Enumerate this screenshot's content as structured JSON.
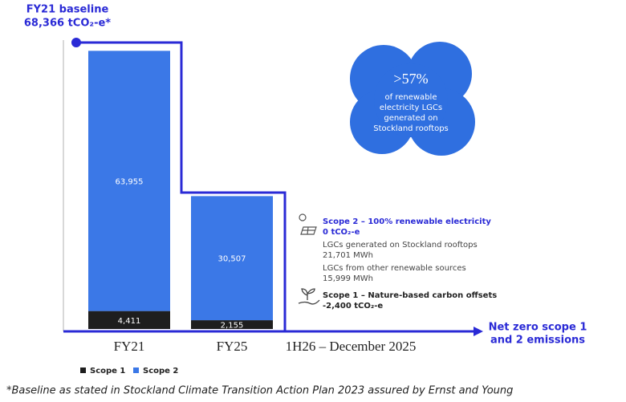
{
  "chart_data": {
    "type": "bar",
    "stacked": true,
    "categories": [
      "FY21",
      "FY25",
      "1H26 – December 2025"
    ],
    "series": [
      {
        "name": "Scope 1",
        "color": "#1e1e1e",
        "values": [
          4411,
          2155,
          null
        ],
        "value_labels": [
          "4,411",
          "2,155",
          null
        ]
      },
      {
        "name": "Scope 2",
        "color": "#3b78e7",
        "values": [
          63955,
          30507,
          null
        ],
        "value_labels": [
          "63,955",
          "30,507",
          null
        ]
      }
    ],
    "ylim": [
      0,
      71000
    ],
    "baseline_label": "FY21 baseline",
    "baseline_value": "68,366 tCO₂-e*",
    "callout": [
      ">57%",
      "of renewable",
      "electricity LGCs",
      "generated on",
      "Stockland rooftops"
    ],
    "scope2_notes": [
      "Scope 2 – 100% renewable electricity",
      "0 tCO₂-e",
      "LGCs generated on Stockland rooftops",
      "21,701 MWh",
      "LGCs from other renewable sources",
      "15,999 MWh"
    ],
    "scope1_notes": [
      "Scope 1 – Nature-based carbon offsets",
      "-2,400 tCO₂-e"
    ],
    "goal": [
      "Net zero scope 1",
      "and 2 emissions"
    ],
    "footnote": "*Baseline as stated in Stockland Climate Transition Action Plan 2023 assured by Ernst and Young"
  }
}
